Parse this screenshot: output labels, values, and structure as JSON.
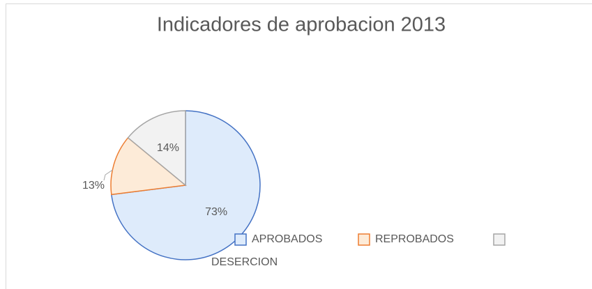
{
  "chart_data": {
    "type": "pie",
    "title": "Indicadores de aprobacion 2013",
    "categories": [
      "APROBADOS",
      "REPROBADOS",
      "DESERCION"
    ],
    "values": [
      73,
      13,
      14
    ],
    "value_labels": [
      "73%",
      "13%",
      "14%"
    ],
    "colors": [
      "#4472c4",
      "#ed7d31",
      "#a5a5a5"
    ],
    "fills": [
      "#deebfb",
      "#fdebd8",
      "#f2f2f2"
    ],
    "legend": "bottom"
  }
}
